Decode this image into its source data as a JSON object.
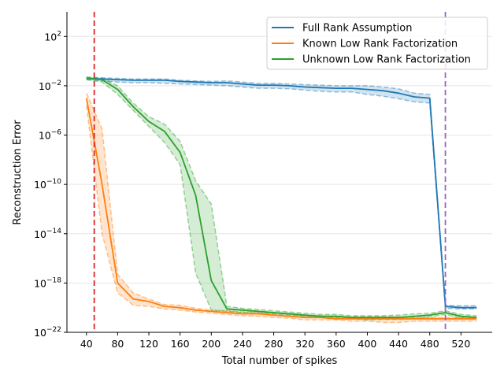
{
  "chart_data": {
    "type": "line",
    "title": "",
    "xlabel": "Total number of spikes",
    "ylabel": "Reconstruction Error",
    "y_scale": "log",
    "xlim": [
      15,
      560
    ],
    "ylim_exponents": [
      -22,
      4
    ],
    "x_ticks": [
      40,
      80,
      120,
      160,
      200,
      240,
      280,
      320,
      360,
      400,
      440,
      480,
      520
    ],
    "y_ticks": [
      {
        "exp": 2,
        "base": "10",
        "sup": "2"
      },
      {
        "exp": -2,
        "base": "10",
        "sup": "−2"
      },
      {
        "exp": -6,
        "base": "10",
        "sup": "−6"
      },
      {
        "exp": -10,
        "base": "10",
        "sup": "−10"
      },
      {
        "exp": -14,
        "base": "10",
        "sup": "−14"
      },
      {
        "exp": -18,
        "base": "10",
        "sup": "−18"
      },
      {
        "exp": -22,
        "base": "10",
        "sup": "−22"
      }
    ],
    "grid": "horizontal",
    "legend_position": "top-right",
    "vlines": [
      {
        "x": 50,
        "color": "#d62728"
      },
      {
        "x": 500,
        "color": "#9467bd"
      }
    ],
    "series": [
      {
        "name": "Full Rank Assumption",
        "color": "#1f77b4",
        "x": [
          40,
          60,
          80,
          100,
          120,
          140,
          160,
          180,
          200,
          220,
          240,
          260,
          280,
          300,
          320,
          340,
          360,
          380,
          400,
          420,
          440,
          460,
          480,
          500,
          520,
          540
        ],
        "log10_y": [
          -1.4,
          -1.45,
          -1.5,
          -1.55,
          -1.55,
          -1.55,
          -1.65,
          -1.7,
          -1.75,
          -1.75,
          -1.85,
          -1.95,
          -1.95,
          -2.0,
          -2.1,
          -2.15,
          -2.2,
          -2.2,
          -2.3,
          -2.4,
          -2.6,
          -2.9,
          -3.0,
          -19.9,
          -20.0,
          -20.0
        ],
        "log10_lo": [
          -1.5,
          -1.6,
          -1.7,
          -1.75,
          -1.75,
          -1.8,
          -1.85,
          -1.9,
          -1.95,
          -2.0,
          -2.1,
          -2.2,
          -2.2,
          -2.25,
          -2.35,
          -2.45,
          -2.5,
          -2.5,
          -2.7,
          -2.85,
          -3.05,
          -3.3,
          -3.4,
          -20.05,
          -20.1,
          -20.1
        ],
        "log10_hi": [
          -1.3,
          -1.35,
          -1.4,
          -1.45,
          -1.45,
          -1.45,
          -1.55,
          -1.6,
          -1.65,
          -1.6,
          -1.7,
          -1.8,
          -1.8,
          -1.85,
          -1.9,
          -1.95,
          -2.0,
          -2.0,
          -2.0,
          -2.1,
          -2.25,
          -2.6,
          -2.7,
          -19.8,
          -19.85,
          -19.85
        ]
      },
      {
        "name": "Known Low Rank Factorization",
        "color": "#ff7f0e",
        "x": [
          40,
          60,
          80,
          100,
          120,
          140,
          160,
          180,
          200,
          220,
          240,
          260,
          280,
          300,
          320,
          340,
          360,
          380,
          400,
          420,
          440,
          460,
          480,
          500,
          520,
          540
        ],
        "log10_y": [
          -3.0,
          -10.0,
          -18.0,
          -19.3,
          -19.5,
          -19.9,
          -20.0,
          -20.2,
          -20.3,
          -20.4,
          -20.5,
          -20.5,
          -20.6,
          -20.7,
          -20.8,
          -20.8,
          -20.9,
          -20.9,
          -20.9,
          -20.9,
          -20.9,
          -20.9,
          -20.9,
          -20.9,
          -20.9,
          -20.9
        ],
        "log10_lo": [
          -3.6,
          -14.0,
          -18.8,
          -19.8,
          -19.9,
          -20.1,
          -20.2,
          -20.35,
          -20.45,
          -20.55,
          -20.65,
          -20.7,
          -20.8,
          -20.85,
          -21.0,
          -21.0,
          -21.0,
          -21.1,
          -21.1,
          -21.2,
          -21.2,
          -21.1,
          -21.1,
          -21.1,
          -21.1,
          -21.1
        ],
        "log10_hi": [
          -2.6,
          -5.5,
          -17.3,
          -18.8,
          -19.3,
          -19.75,
          -19.8,
          -20.05,
          -20.2,
          -20.25,
          -20.35,
          -20.35,
          -20.4,
          -20.55,
          -20.65,
          -20.65,
          -20.75,
          -20.75,
          -20.75,
          -20.75,
          -20.75,
          -20.8,
          -20.8,
          -20.8,
          -20.8,
          -20.8
        ]
      },
      {
        "name": "Unknown Low Rank Factorization",
        "color": "#2ca02c",
        "x": [
          40,
          60,
          80,
          100,
          120,
          140,
          160,
          180,
          200,
          220,
          240,
          260,
          280,
          300,
          320,
          340,
          360,
          380,
          400,
          420,
          440,
          460,
          480,
          500,
          520,
          540
        ],
        "log10_y": [
          -1.4,
          -1.5,
          -2.3,
          -3.7,
          -4.9,
          -5.7,
          -7.4,
          -10.9,
          -17.8,
          -20.1,
          -20.2,
          -20.3,
          -20.4,
          -20.5,
          -20.6,
          -20.7,
          -20.7,
          -20.8,
          -20.8,
          -20.8,
          -20.8,
          -20.7,
          -20.6,
          -20.4,
          -20.7,
          -20.8
        ],
        "log10_lo": [
          -1.5,
          -1.7,
          -2.7,
          -4.0,
          -5.3,
          -6.6,
          -8.4,
          -17.2,
          -20.2,
          -20.3,
          -20.4,
          -20.45,
          -20.5,
          -20.6,
          -20.7,
          -20.8,
          -20.8,
          -20.9,
          -21.0,
          -20.95,
          -20.95,
          -20.9,
          -20.75,
          -20.55,
          -20.85,
          -20.95
        ],
        "log10_hi": [
          -1.3,
          -1.4,
          -2.0,
          -3.4,
          -4.5,
          -5.1,
          -6.5,
          -9.7,
          -11.6,
          -19.9,
          -20.05,
          -20.15,
          -20.25,
          -20.35,
          -20.45,
          -20.55,
          -20.55,
          -20.65,
          -20.65,
          -20.65,
          -20.6,
          -20.5,
          -20.45,
          -20.25,
          -20.55,
          -20.65
        ]
      }
    ]
  }
}
